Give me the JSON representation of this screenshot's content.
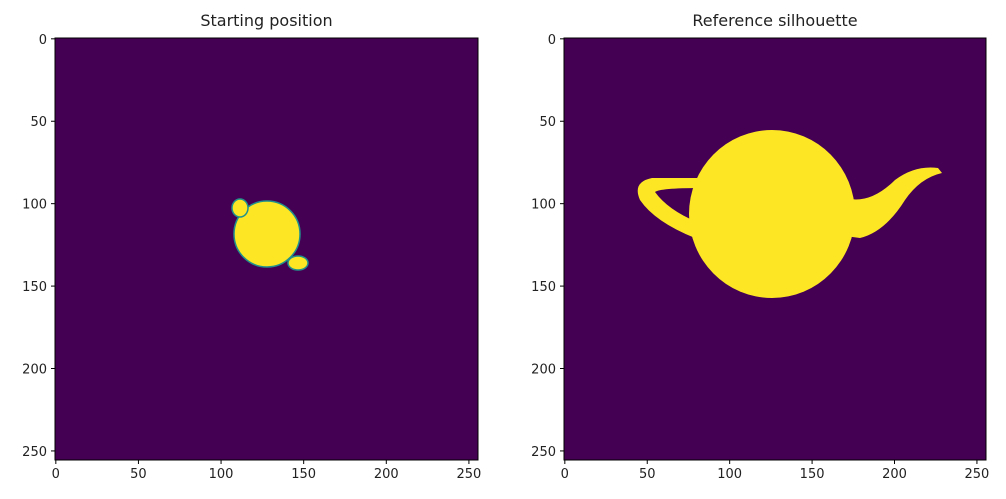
{
  "chart_data": [
    {
      "type": "image",
      "title": "Starting position",
      "xlim": [
        -0.5,
        255.5
      ],
      "ylim": [
        255.5,
        -0.5
      ],
      "xticks": [
        0,
        50,
        100,
        150,
        200,
        250
      ],
      "yticks": [
        0,
        50,
        100,
        150,
        200,
        250
      ],
      "background_color": "#440154",
      "foreground_color": "#fde725"
    },
    {
      "type": "image",
      "title": "Reference silhouette",
      "xlim": [
        -0.5,
        255.5
      ],
      "ylim": [
        255.5,
        -0.5
      ],
      "xticks": [
        0,
        50,
        100,
        150,
        200,
        250
      ],
      "yticks": [
        0,
        50,
        100,
        150,
        200,
        250
      ],
      "background_color": "#440154",
      "foreground_color": "#fde725"
    }
  ]
}
